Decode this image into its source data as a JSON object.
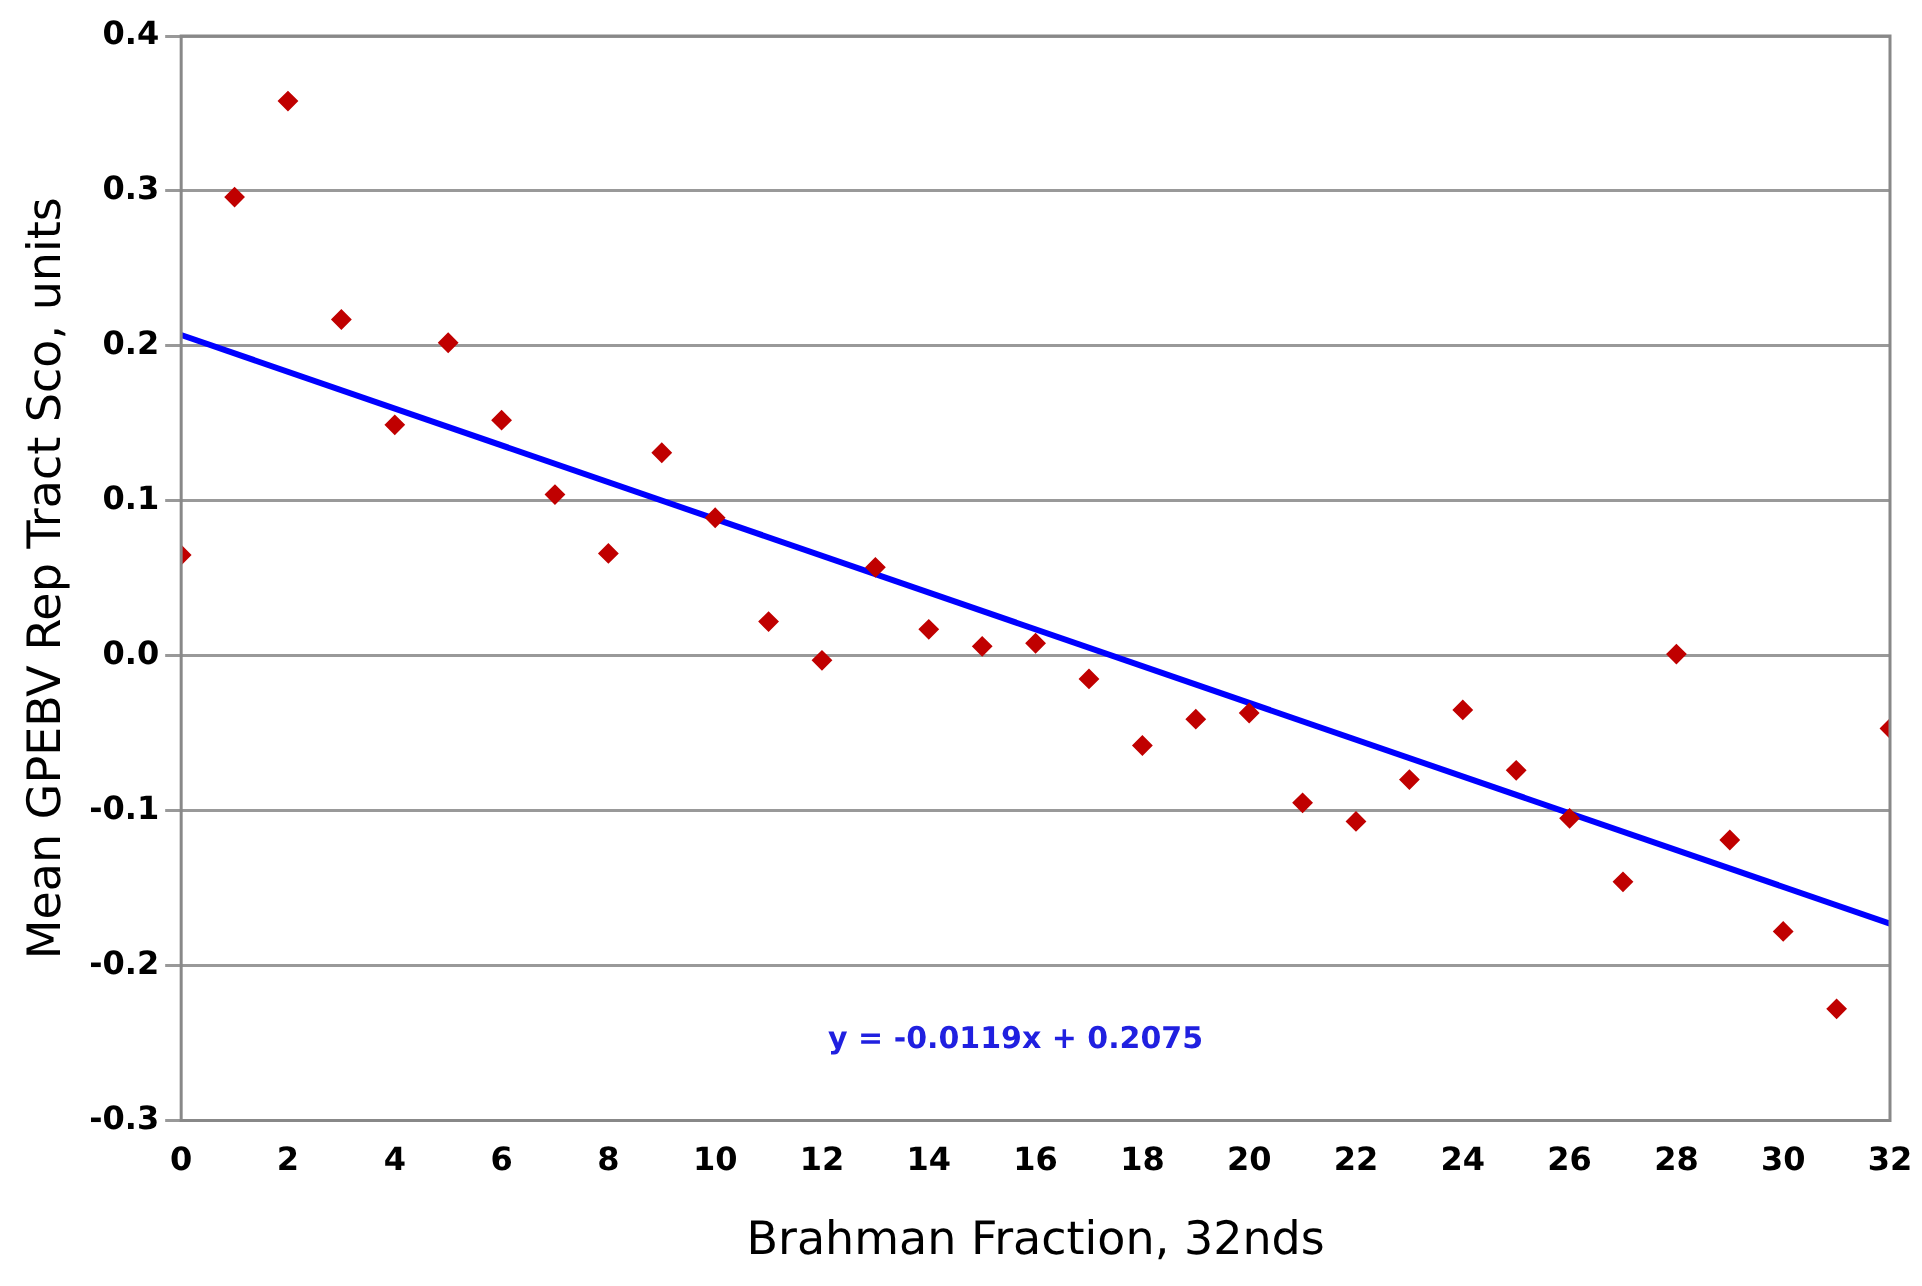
{
  "chart_data": {
    "type": "scatter",
    "xlabel": "Brahman Fraction, 32nds",
    "ylabel": "Mean GPEBV Rep Tract Sco, units",
    "x": [
      0,
      1,
      2,
      3,
      4,
      5,
      6,
      7,
      8,
      9,
      10,
      11,
      12,
      13,
      14,
      15,
      16,
      17,
      18,
      19,
      20,
      21,
      22,
      23,
      24,
      25,
      26,
      27,
      28,
      29,
      30,
      31,
      32
    ],
    "series": [
      {
        "color": "#c00000",
        "values": [
          0.065,
          0.296,
          0.358,
          0.217,
          0.149,
          0.202,
          0.152,
          0.104,
          0.066,
          0.131,
          0.089,
          0.022,
          -0.003,
          0.057,
          0.017,
          0.006,
          0.008,
          -0.015,
          -0.058,
          -0.041,
          -0.037,
          -0.095,
          -0.107,
          -0.08,
          -0.035,
          -0.074,
          -0.105,
          -0.146,
          0.001,
          -0.119,
          -0.178,
          -0.228,
          -0.047
        ]
      },
      {
        "type": "line",
        "color": "#0000ff",
        "marker": "none",
        "x": [
          0,
          32
        ],
        "values": [
          0.207,
          -0.173
        ]
      }
    ],
    "annotations": [
      "y = -0.0119x + 0.2075"
    ],
    "xlim": [
      0,
      32
    ],
    "xticks": [
      0,
      2,
      4,
      6,
      8,
      10,
      12,
      14,
      16,
      18,
      20,
      22,
      24,
      26,
      28,
      30,
      32
    ],
    "ylim": [
      -0.3,
      0.4
    ],
    "yticks": [
      {
        "value": -0.3,
        "label": "-0.3"
      },
      {
        "value": -0.2,
        "label": "-0.2"
      },
      {
        "value": -0.1,
        "label": "-0.1"
      },
      {
        "value": 0,
        "label": "0.0"
      },
      {
        "value": 0.1,
        "label": "0.1"
      },
      {
        "value": 0.2,
        "label": "0.2"
      },
      {
        "value": 0.3,
        "label": "0.3"
      },
      {
        "value": 0.4,
        "label": "0.4"
      }
    ],
    "grid": "y",
    "legend": false,
    "marker": "diamond",
    "line_style": "solid"
  }
}
